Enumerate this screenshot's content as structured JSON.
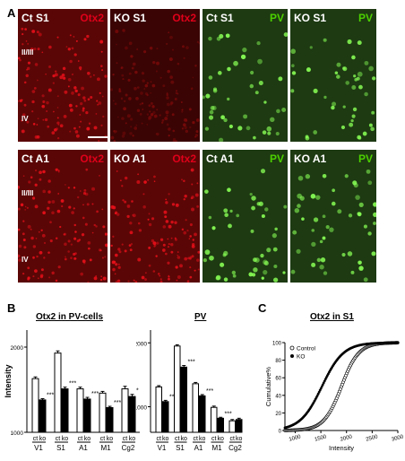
{
  "panel_labels": {
    "a": "A",
    "b": "B",
    "c": "C"
  },
  "colors": {
    "otx2": "#e0001a",
    "pv": "#4cd000",
    "red_tissue": "#5a0606",
    "green_tissue": "#1d3a12"
  },
  "micrographs": {
    "row1": [
      {
        "left": "Ct S1",
        "right": "Otx2",
        "channel": "red"
      },
      {
        "left": "KO S1",
        "right": "Otx2",
        "channel": "red_dim"
      },
      {
        "left": "Ct S1",
        "right": "PV",
        "channel": "green"
      },
      {
        "left": "KO S1",
        "right": "PV",
        "channel": "green"
      }
    ],
    "row2": [
      {
        "left": "Ct A1",
        "right": "Otx2",
        "channel": "red"
      },
      {
        "left": "KO A1",
        "right": "Otx2",
        "channel": "red"
      },
      {
        "left": "Ct A1",
        "right": "PV",
        "channel": "green"
      },
      {
        "left": "KO A1",
        "right": "PV",
        "channel": "green"
      }
    ],
    "layers": {
      "upper": "II/III",
      "lower": "IV"
    }
  },
  "chart_data": [
    {
      "type": "bar",
      "title": "Otx2 in PV-cells",
      "ylabel": "Intensity",
      "ylim": [
        1000,
        2200
      ],
      "yticks": [
        1000,
        2000
      ],
      "groups": [
        "V1",
        "S1",
        "A1",
        "M1",
        "Cg2"
      ],
      "bar_labels": [
        "ct",
        "ko"
      ],
      "series": [
        {
          "name": "ct",
          "values": [
            1630,
            1930,
            1510,
            1460,
            1510
          ],
          "errors": [
            20,
            25,
            20,
            20,
            30
          ]
        },
        {
          "name": "ko",
          "values": [
            1380,
            1510,
            1390,
            1290,
            1420
          ],
          "errors": [
            15,
            20,
            20,
            15,
            25
          ]
        }
      ],
      "significance": [
        "***",
        "***",
        "***",
        "***",
        "*"
      ]
    },
    {
      "type": "bar",
      "title": "PV",
      "ylabel": "",
      "ylim": [
        600,
        2200
      ],
      "yticks": [
        1000,
        2000
      ],
      "groups": [
        "V1",
        "S1",
        "A1"
      ],
      "groups2": [
        "M1",
        "Cg2"
      ],
      "bar_labels": [
        "ct",
        "ko"
      ],
      "series": [
        {
          "name": "ct",
          "values": [
            1310,
            1950,
            1360,
            990,
            780
          ],
          "errors": [
            20,
            20,
            20,
            20,
            20
          ]
        },
        {
          "name": "ko",
          "values": [
            1080,
            1620,
            1170,
            820,
            800
          ],
          "errors": [
            20,
            25,
            20,
            15,
            20
          ]
        }
      ],
      "significance": [
        "***",
        "***",
        "***",
        "***",
        ""
      ]
    },
    {
      "type": "scatter",
      "title": "Otx2 in S1",
      "xlabel": "Intensity",
      "ylabel": "Cumulative%",
      "xlim": [
        800,
        3000
      ],
      "ylim": [
        0,
        100
      ],
      "xticks": [
        1000,
        1500,
        2000,
        2500,
        3000
      ],
      "yticks": [
        0,
        20,
        40,
        60,
        80,
        100
      ],
      "legend": [
        "Control",
        "KO"
      ],
      "series": [
        {
          "name": "Control",
          "marker": "open-circle",
          "center": 1900,
          "spread": 170
        },
        {
          "name": "KO",
          "marker": "filled-circle",
          "center": 1520,
          "spread": 210
        }
      ]
    }
  ]
}
